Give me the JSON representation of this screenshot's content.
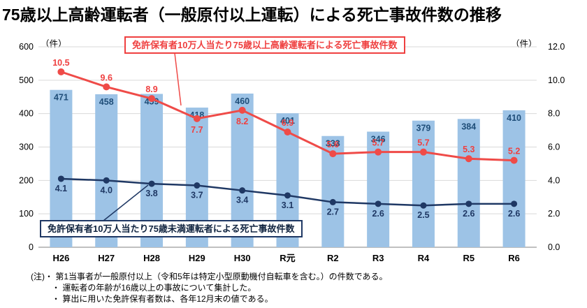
{
  "title": "75歳以上高齢運転者（一般原付以上運転）による死亡事故件数の推移",
  "axes": {
    "left_unit": "（件）",
    "right_unit": "（件）",
    "left_ticks": [
      "0",
      "100",
      "200",
      "300",
      "400",
      "500",
      "600"
    ],
    "right_ticks": [
      "0.0",
      "2.0",
      "4.0",
      "6.0",
      "8.0",
      "10.0",
      "12.0"
    ]
  },
  "chart_data": {
    "type": "bar",
    "subtype": "bar+line combo, dual axis",
    "categories": [
      "H26",
      "H27",
      "H28",
      "H29",
      "H30",
      "R元",
      "R2",
      "R3",
      "R4",
      "R5",
      "R6"
    ],
    "series": [
      {
        "name": "75歳以上高齢運転者による死亡事故件数",
        "type": "bar",
        "axis": "left",
        "values": [
          471,
          458,
          459,
          418,
          460,
          401,
          333,
          346,
          379,
          384,
          410
        ]
      },
      {
        "name": "免許保有者10万人当たり75歳以上高齢運転者による死亡事故件数",
        "type": "line",
        "axis": "right",
        "values": [
          10.5,
          9.6,
          8.9,
          7.7,
          8.2,
          6.9,
          5.6,
          5.7,
          5.7,
          5.3,
          5.2
        ]
      },
      {
        "name": "免許保有者10万人当たり75歳未満運転者による死亡事故件数",
        "type": "line",
        "axis": "right",
        "values": [
          4.1,
          4.0,
          3.8,
          3.7,
          3.4,
          3.1,
          2.7,
          2.6,
          2.5,
          2.6,
          2.6
        ]
      }
    ],
    "left_axis_range": [
      0,
      600
    ],
    "right_axis_range": [
      0,
      12
    ],
    "grid": true,
    "red_label_below_indices": [
      3,
      4
    ]
  },
  "annotations": {
    "red_box": "免許保有者10万人当たり75歳以上高齢運転者による死亡事故件数",
    "navy_box": "免許保有者10万人当たり75歳未満運転者による死亡事故件数"
  },
  "notes": [
    "(注)・ 第1当事者が一般原付以上（令和5年は特定小型原動機付自転車を含む。）の件数である。",
    "・ 運転者の年齢が16歳以上の事故について集計した。",
    "・ 算出に用いた免許保有者数は、各年12月末の値である。"
  ],
  "colors": {
    "bar": "#9DC3E6",
    "red_line": "#EF4B48",
    "navy_line": "#1F3864",
    "grid": "#D9D9D9",
    "axis": "#808080",
    "bar_label": "#1F4E79"
  }
}
